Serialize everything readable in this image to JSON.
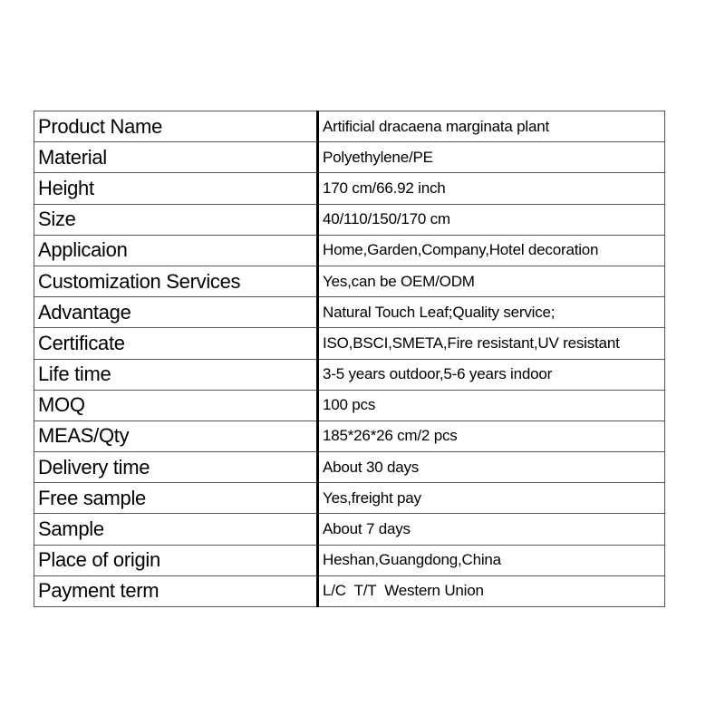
{
  "rows": [
    {
      "label": "Product Name",
      "value": "Artificial dracaena marginata plant"
    },
    {
      "label": "Material",
      "value": "Polyethylene/PE"
    },
    {
      "label": "Height",
      "value": "170 cm/66.92 inch"
    },
    {
      "label": "Size",
      "value": "40/110/150/170 cm"
    },
    {
      "label": "Applicaion",
      "value": "Home,Garden,Company,Hotel decoration"
    },
    {
      "label": "Customization Services",
      "value": "Yes,can be OEM/ODM"
    },
    {
      "label": "Advantage",
      "value": "Natural Touch Leaf;Quality service;"
    },
    {
      "label": "Certificate",
      "value": "ISO,BSCI,SMETA,Fire resistant,UV resistant"
    },
    {
      "label": "Life time",
      "value": "3-5 years outdoor,5-6 years indoor"
    },
    {
      "label": "MOQ",
      "value": "100 pcs"
    },
    {
      "label": "MEAS/Qty",
      "value": "185*26*26 cm/2 pcs"
    },
    {
      "label": "Delivery time",
      "value": "About 30 days"
    },
    {
      "label": "Free sample",
      "value": "Yes,freight pay"
    },
    {
      "label": "Sample",
      "value": "About 7 days"
    },
    {
      "label": "Place of origin",
      "value": "Heshan,Guangdong,China"
    },
    {
      "label": "Payment term",
      "value": "L/C  T/T  Western Union"
    }
  ]
}
